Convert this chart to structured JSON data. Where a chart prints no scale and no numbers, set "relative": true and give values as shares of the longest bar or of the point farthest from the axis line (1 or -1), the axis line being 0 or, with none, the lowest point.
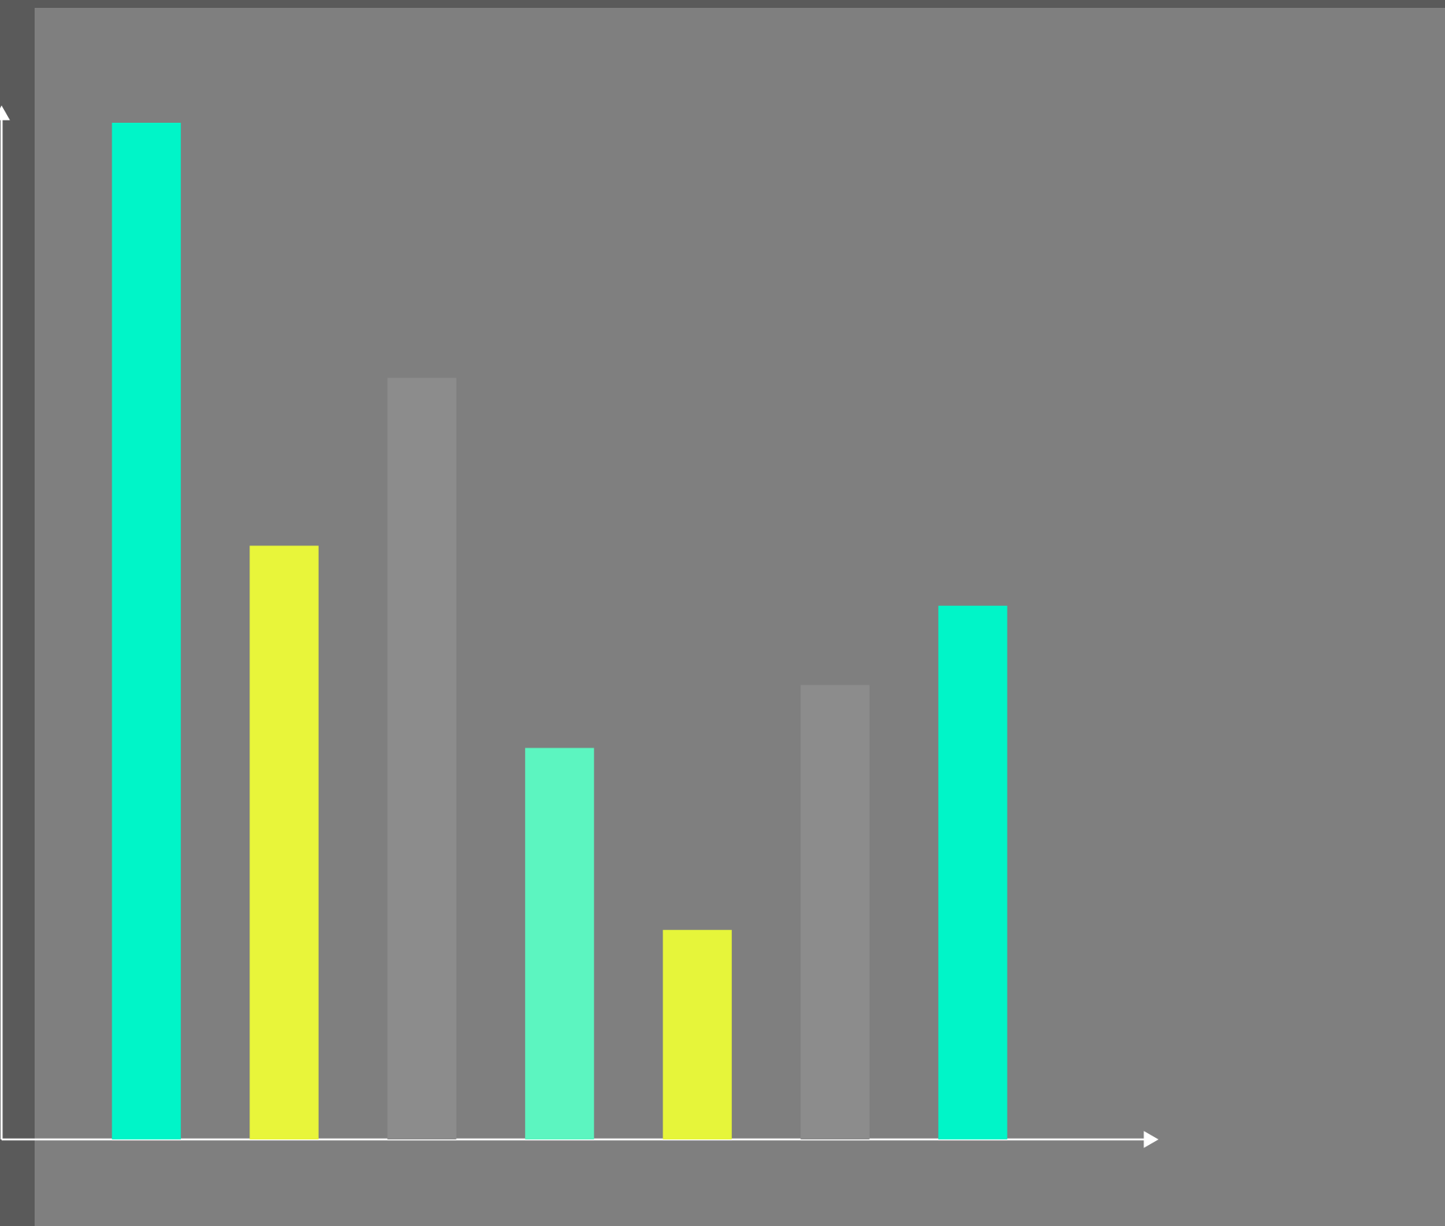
{
  "chart_data": {
    "type": "bar",
    "relative": true,
    "categories": [
      null,
      null,
      null,
      null,
      null,
      null,
      null
    ],
    "values": [
      1,
      0.584,
      0.749,
      0.385,
      0.206,
      0.447,
      0.525
    ],
    "colors": [
      "#00f5c8",
      "#e8f53a",
      "#8c8c8c",
      "#5cf5c0",
      "#e6f53a",
      "#8c8c8c",
      "#00f5c8"
    ]
  }
}
